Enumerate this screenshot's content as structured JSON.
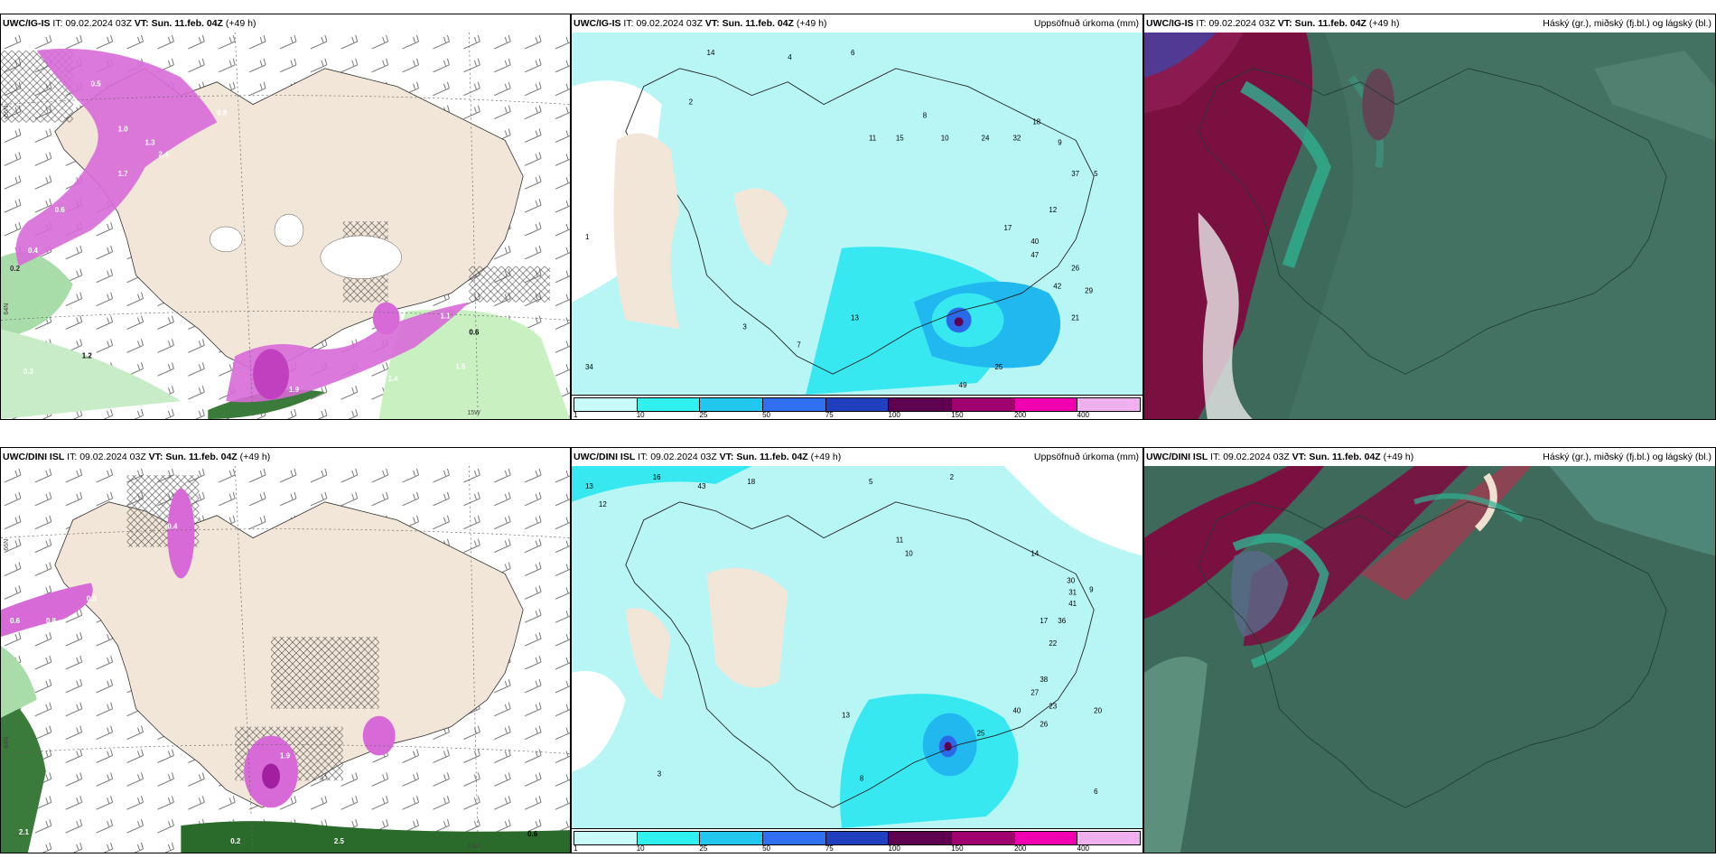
{
  "rows": [
    {
      "model": "UWC/IG-IS",
      "it_label": "IT:",
      "it_value": "09.02.2024 03Z",
      "vt_label": "VT:",
      "vt_value": "Sun. 11.feb. 04Z",
      "lead": "(+49 h)",
      "wind_labels": [
        "0.5",
        "1.0",
        "1.3",
        "2.4",
        "1.7",
        "0.8",
        "0.6",
        "0.4",
        "0.2",
        "1.2",
        "0.3",
        "1.4",
        "1.5",
        "1.9",
        "0.6",
        "1.1"
      ],
      "precip_labels": [
        "14",
        "4",
        "6",
        "2",
        "11",
        "15",
        "8",
        "10",
        "24",
        "32",
        "18",
        "9",
        "37",
        "5",
        "12",
        "17",
        "40",
        "47",
        "26",
        "42",
        "29",
        "21",
        "13",
        "34",
        "49",
        "25",
        "1",
        "3",
        "7"
      ],
      "axis_label_1": "66N",
      "axis_label_2": "64N",
      "axis_label_3": "15W"
    },
    {
      "model": "UWC/DINI ISL",
      "it_label": "IT:",
      "it_value": "09.02.2024 03Z",
      "vt_label": "VT:",
      "vt_value": "Sun. 11.feb. 04Z",
      "lead": "(+49 h)",
      "wind_labels": [
        "0.4",
        "0.3",
        "0.6",
        "0.8",
        "0.5",
        "1.9",
        "2.5",
        "0.2",
        "1.3",
        "2.1",
        "0.6"
      ],
      "precip_labels": [
        "13",
        "16",
        "18",
        "12",
        "43",
        "5",
        "2",
        "11",
        "10",
        "14",
        "30",
        "31",
        "41",
        "9",
        "36",
        "17",
        "22",
        "13",
        "20",
        "27",
        "23",
        "40",
        "26",
        "25",
        "38",
        "8",
        "6",
        "3"
      ],
      "axis_label_1": "66N",
      "axis_label_2": "64N",
      "axis_label_3": "15W"
    }
  ],
  "precip_title": "Uppsöfnuð úrkoma (mm)",
  "cloud_title": "Háský (gr.), miðský (fj.bl.) og lágský (bl.)",
  "legend": {
    "ticks": [
      "1",
      "10",
      "25",
      "50",
      "75",
      "100",
      "150",
      "200",
      "400"
    ],
    "colors": [
      "#c8fafa",
      "#30f0f0",
      "#20c8f0",
      "#3070f0",
      "#2040c0",
      "#600050",
      "#a00070",
      "#f000b0",
      "#f0b0f0"
    ]
  },
  "colors": {
    "land": "#f2e6d8",
    "sea_precip": "#b8f6f6",
    "precip_mid": "#38e8f0",
    "precip_hi": "#20b8ee",
    "wind_magenta": "#d86ad8",
    "wind_green": "#80c880",
    "cloud_bg": "#3d6a5a",
    "cloud_red": "#7a1040",
    "cloud_teal": "#30b090"
  }
}
